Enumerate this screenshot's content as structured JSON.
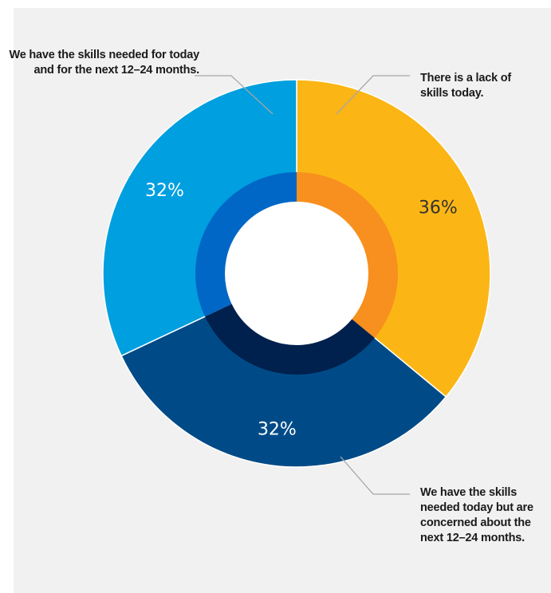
{
  "chart_data": {
    "type": "donut",
    "title": "",
    "slices": [
      {
        "label": "There is a lack of skills today.",
        "value": 36,
        "value_label": "36%",
        "color": "#fbb615",
        "inner_color": "#f7901e",
        "label_color": "#333333"
      },
      {
        "label": "We have the skills needed today but are concerned about the next 12–24 months.",
        "value": 32,
        "value_label": "32%",
        "color": "#004b87",
        "inner_color": "#00204d",
        "label_color": "#ffffff"
      },
      {
        "label": "We have the skills needed for today and for the next 12–24 months.",
        "value": 32,
        "value_label": "32%",
        "color": "#009fdf",
        "inner_color": "#0067c6",
        "label_color": "#ffffff"
      }
    ],
    "start_angle_deg": 0,
    "direction": "clockwise",
    "legend": "callouts"
  },
  "callouts": {
    "left": "We have the skills needed for today and for the next 12–24 months.",
    "right_top": "There is a lack of skills today.",
    "right_bottom": "We have the skills needed today but are concerned about the next 12–24 months."
  }
}
